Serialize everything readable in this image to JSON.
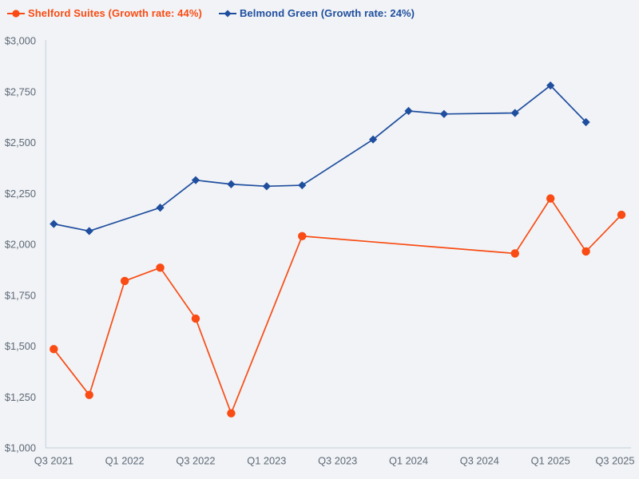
{
  "page": {
    "background_color": "#f1f3f6",
    "axis_color": "#cbd6e4",
    "tick_label_color": "#5d6876"
  },
  "chart_data": {
    "type": "line",
    "title": "",
    "xlabel": "",
    "ylabel": "",
    "grid": false,
    "legend_position": "top-left",
    "ylim": [
      1000,
      3000
    ],
    "y_tick_step": 250,
    "categories": [
      "Q3 2021",
      "Q4 2021",
      "Q1 2022",
      "Q2 2022",
      "Q3 2022",
      "Q4 2022",
      "Q1 2023",
      "Q2 2023",
      "Q3 2023",
      "Q4 2023",
      "Q1 2024",
      "Q2 2024",
      "Q3 2024",
      "Q4 2024",
      "Q1 2025",
      "Q2 2025",
      "Q3 2025"
    ],
    "x_tick_labels": [
      "Q3 2021",
      "Q1 2022",
      "Q3 2022",
      "Q1 2023",
      "Q3 2023",
      "Q1 2024",
      "Q3 2024",
      "Q1 2025",
      "Q3 2025"
    ],
    "y_tick_labels": [
      "$1,000",
      "$1,250",
      "$1,500",
      "$1,750",
      "$2,000",
      "$2,250",
      "$2,500",
      "$2,750",
      "$3,000"
    ],
    "series": [
      {
        "name": "Shelford Suites",
        "legend_label": "Shelford Suites (Growth rate: 44%)",
        "growth_rate": "44%",
        "color": "#f94b13",
        "marker": "circle",
        "points": [
          {
            "quarter": "Q3 2021",
            "value": 1485
          },
          {
            "quarter": "Q4 2021",
            "value": 1260
          },
          {
            "quarter": "Q1 2022",
            "value": 1820
          },
          {
            "quarter": "Q2 2022",
            "value": 1885
          },
          {
            "quarter": "Q3 2022",
            "value": 1635
          },
          {
            "quarter": "Q4 2022",
            "value": 1170
          },
          {
            "quarter": "Q2 2023",
            "value": 2040
          },
          {
            "quarter": "Q4 2024",
            "value": 1955
          },
          {
            "quarter": "Q1 2025",
            "value": 2225
          },
          {
            "quarter": "Q2 2025",
            "value": 1965
          },
          {
            "quarter": "Q3 2025",
            "value": 2145
          }
        ]
      },
      {
        "name": "Belmond Green",
        "legend_label": "Belmond Green (Growth rate: 24%)",
        "growth_rate": "24%",
        "color": "#1f4e9e",
        "marker": "diamond",
        "points": [
          {
            "quarter": "Q3 2021",
            "value": 2100
          },
          {
            "quarter": "Q4 2021",
            "value": 2065
          },
          {
            "quarter": "Q2 2022",
            "value": 2180
          },
          {
            "quarter": "Q3 2022",
            "value": 2315
          },
          {
            "quarter": "Q4 2022",
            "value": 2295
          },
          {
            "quarter": "Q1 2023",
            "value": 2285
          },
          {
            "quarter": "Q2 2023",
            "value": 2290
          },
          {
            "quarter": "Q4 2023",
            "value": 2515
          },
          {
            "quarter": "Q1 2024",
            "value": 2655
          },
          {
            "quarter": "Q2 2024",
            "value": 2640
          },
          {
            "quarter": "Q4 2024",
            "value": 2645
          },
          {
            "quarter": "Q1 2025",
            "value": 2780
          },
          {
            "quarter": "Q2 2025",
            "value": 2600
          }
        ]
      }
    ]
  }
}
